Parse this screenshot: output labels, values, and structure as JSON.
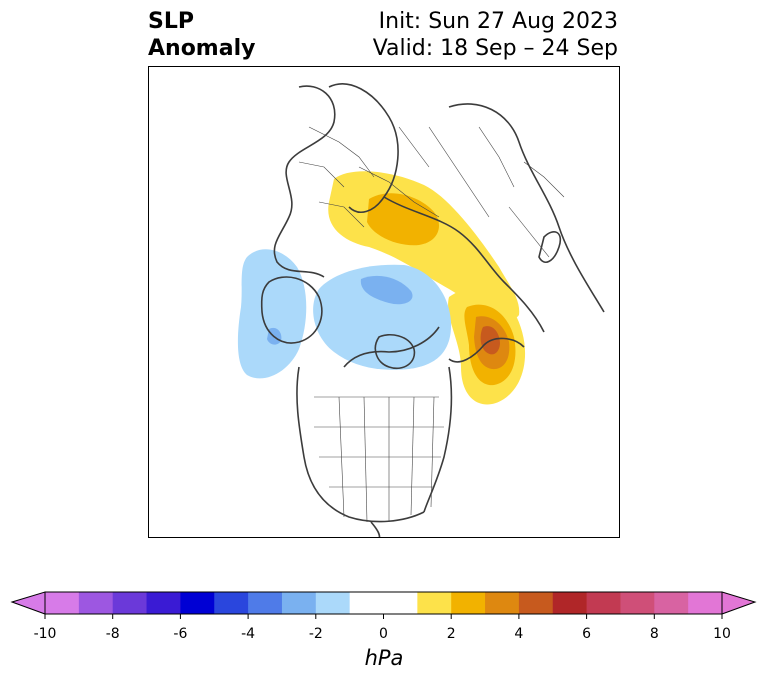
{
  "title": {
    "left_line1": "SLP",
    "left_line2": "Anomaly",
    "right_line1": "Init: Sun 27 Aug 2023",
    "right_line2": "Valid: 18 Sep – 24 Sep"
  },
  "map": {
    "projection": "north-polar-stereographic",
    "features": [
      "coastlines",
      "country-borders",
      "us-state-borders"
    ],
    "anomalies": [
      {
        "name": "positive-anomaly-europe-russia",
        "sign": "positive",
        "peak_hpa": 3
      },
      {
        "name": "negative-anomaly-arctic-canada",
        "sign": "negative",
        "peak_hpa": -3
      },
      {
        "name": "negative-anomaly-north-atlantic",
        "sign": "negative",
        "peak_hpa": -3
      },
      {
        "name": "positive-anomaly-north-pacific",
        "sign": "positive",
        "peak_hpa": 5
      }
    ]
  },
  "colorbar": {
    "unit": "hPa",
    "ticks": [
      "-10",
      "-8",
      "-6",
      "-4",
      "-2",
      "0",
      "2",
      "4",
      "6",
      "8",
      "10"
    ],
    "tick_values": [
      -10,
      -8,
      -6,
      -4,
      -2,
      0,
      2,
      4,
      6,
      8,
      10
    ],
    "min": -10,
    "max": 10,
    "levels": [
      -10,
      -9,
      -8,
      -7,
      -6,
      -5,
      -4,
      -3,
      -2,
      -1,
      1,
      2,
      3,
      4,
      5,
      6,
      7,
      8,
      9,
      10
    ],
    "colors": [
      "#d77be8",
      "#9d57e1",
      "#6b39d9",
      "#3a1bd4",
      "#0000d4",
      "#2a46dd",
      "#4f7be8",
      "#7ab1f0",
      "#abd9fa",
      "#ffffff",
      "#fde24a",
      "#f2b200",
      "#de8810",
      "#c75a1e",
      "#b02628",
      "#c23a52",
      "#cf4f78",
      "#d863a2",
      "#e276d6"
    ],
    "extend_low_color": "#d77be8",
    "extend_high_color": "#e276d6"
  }
}
